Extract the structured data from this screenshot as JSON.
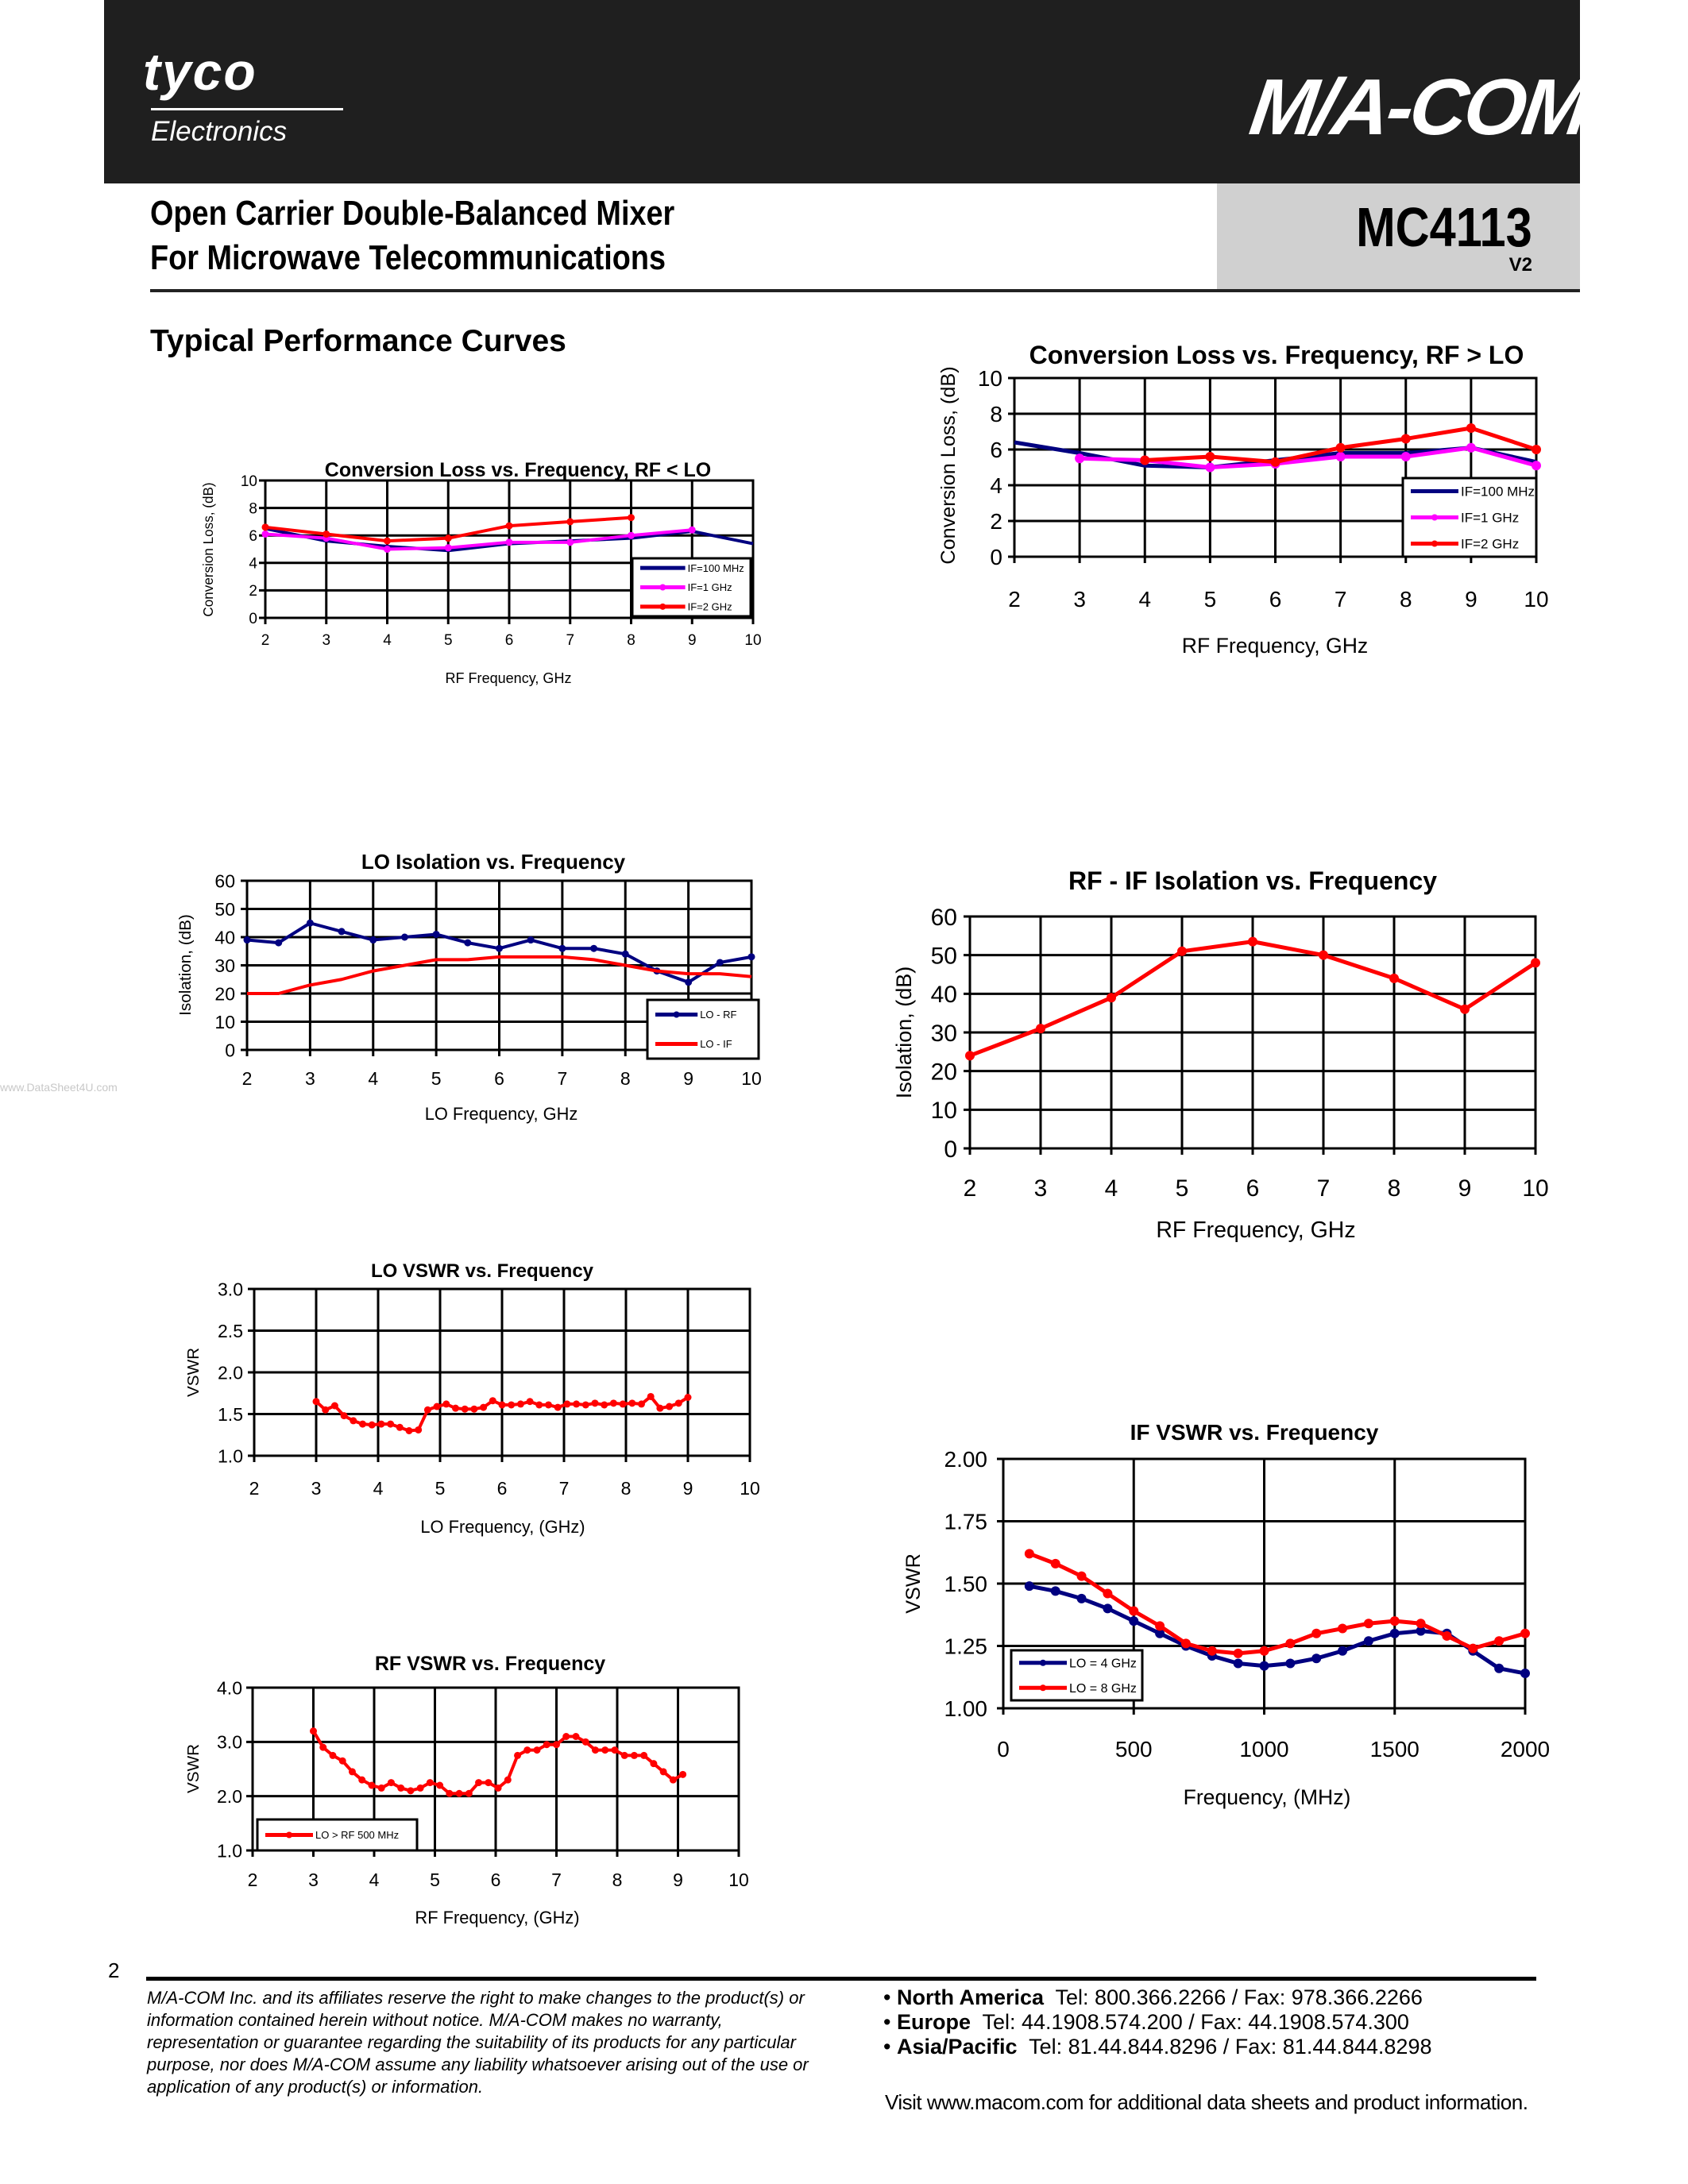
{
  "header": {
    "logo_left": "tyco",
    "logo_left_sub": "Electronics",
    "logo_right": "M/A-COM",
    "title_line1": "Open Carrier Double-Balanced Mixer",
    "title_line2": "For Microwave Telecommunications",
    "part_number": "MC4113",
    "version": "V2"
  },
  "section_title": "Typical Performance Curves",
  "watermark": "www.DataSheet4U.com",
  "footer": {
    "page_number": "2",
    "disclaimer": "M/A-COM Inc. and its affiliates reserve the right to make changes to the product(s) or information contained herein without notice. M/A-COM makes no warranty, representation or guarantee regarding the suitability of its products for any particular purpose, nor does M/A-COM assume any liability whatsoever arising out of the use or application of any product(s) or information.",
    "contacts": [
      {
        "region": "North America",
        "info": "Tel: 800.366.2266 / Fax: 978.366.2266"
      },
      {
        "region": "Europe",
        "info": "Tel: 44.1908.574.200 / Fax: 44.1908.574.300"
      },
      {
        "region": "Asia/Pacific",
        "info": "Tel: 81.44.844.8296 / Fax: 81.44.844.8298"
      }
    ],
    "visit": "Visit www.macom.com for additional data sheets and product information."
  },
  "chart_data": [
    {
      "type": "line",
      "title": "Conversion Loss vs. Frequency,  RF < LO",
      "xlabel": "RF Frequency, GHz",
      "ylabel": "Conversion Loss, (dB)",
      "xlim": [
        2,
        10
      ],
      "ylim": [
        0,
        10
      ],
      "grid": true,
      "legend": "bottom-right",
      "xticks": [
        "2",
        "3",
        "4",
        "5",
        "6",
        "7",
        "8",
        "9",
        "10"
      ],
      "yticks": [
        "0",
        "2",
        "4",
        "6",
        "8",
        "10"
      ],
      "series": [
        {
          "name": "IF=100 MHz",
          "color": "#000080",
          "markers": false,
          "x": [
            2,
            3,
            4,
            5,
            6,
            7,
            8,
            9,
            10
          ],
          "y": [
            6.5,
            5.6,
            5.2,
            4.9,
            5.4,
            5.6,
            5.8,
            6.3,
            5.4
          ]
        },
        {
          "name": "IF=1 GHz",
          "color": "#ff00ff",
          "markers": true,
          "x": [
            2,
            3,
            4,
            5,
            6,
            7,
            8,
            9
          ],
          "y": [
            6.1,
            5.8,
            5.0,
            5.1,
            5.5,
            5.5,
            6.0,
            6.4
          ]
        },
        {
          "name": "IF=2 GHz",
          "color": "#ff0000",
          "markers": true,
          "x": [
            2,
            3,
            4,
            5,
            6,
            7,
            8
          ],
          "y": [
            6.6,
            6.1,
            5.6,
            5.8,
            6.7,
            7.0,
            7.3
          ]
        }
      ]
    },
    {
      "type": "line",
      "title": "Conversion Loss vs. Frequency, RF > LO",
      "xlabel": "RF Frequency, GHz",
      "ylabel": "Conversion Loss, (dB)",
      "xlim": [
        2,
        10
      ],
      "ylim": [
        0,
        10
      ],
      "grid": true,
      "legend": "bottom-right",
      "xticks": [
        "2",
        "3",
        "4",
        "5",
        "6",
        "7",
        "8",
        "9",
        "10"
      ],
      "yticks": [
        "0",
        "2",
        "4",
        "6",
        "8",
        "10"
      ],
      "series": [
        {
          "name": "IF=100 MHz",
          "color": "#000080",
          "markers": false,
          "x": [
            2,
            3,
            4,
            5,
            6,
            7,
            8,
            9,
            10
          ],
          "y": [
            6.4,
            5.8,
            5.1,
            5.0,
            5.4,
            5.8,
            5.8,
            6.1,
            5.3
          ]
        },
        {
          "name": "IF=1 GHz",
          "color": "#ff00ff",
          "markers": true,
          "x": [
            3,
            4,
            5,
            6,
            7,
            8,
            9,
            10
          ],
          "y": [
            5.5,
            5.4,
            5.0,
            5.2,
            5.6,
            5.6,
            6.1,
            5.1
          ]
        },
        {
          "name": "IF=2 GHz",
          "color": "#ff0000",
          "markers": true,
          "x": [
            4,
            5,
            6,
            7,
            8,
            9,
            10
          ],
          "y": [
            5.4,
            5.6,
            5.3,
            6.1,
            6.6,
            7.2,
            6.0
          ]
        }
      ]
    },
    {
      "type": "line",
      "title": "LO Isolation vs. Frequency",
      "xlabel": "LO Frequency, GHz",
      "ylabel": "Isolation, (dB)",
      "xlim": [
        2,
        10
      ],
      "ylim": [
        0,
        60
      ],
      "grid": true,
      "legend": "bottom-right",
      "xticks": [
        "2",
        "3",
        "4",
        "5",
        "6",
        "7",
        "8",
        "9",
        "10"
      ],
      "yticks": [
        "0",
        "10",
        "20",
        "30",
        "40",
        "50",
        "60"
      ],
      "series": [
        {
          "name": "LO - RF",
          "color": "#000080",
          "markers": true,
          "x": [
            2,
            2.5,
            3,
            3.5,
            4,
            4.5,
            5,
            5.5,
            6,
            6.5,
            7,
            7.5,
            8,
            8.5,
            9,
            9.5,
            10
          ],
          "y": [
            39,
            38,
            45,
            42,
            39,
            40,
            41,
            38,
            36,
            39,
            36,
            36,
            34,
            28,
            24,
            31,
            33
          ]
        },
        {
          "name": "LO - IF",
          "color": "#ff0000",
          "markers": false,
          "x": [
            2,
            2.5,
            3,
            3.5,
            4,
            4.5,
            5,
            5.5,
            6,
            6.5,
            7,
            7.5,
            8,
            8.5,
            9,
            9.5,
            10
          ],
          "y": [
            20,
            20,
            23,
            25,
            28,
            30,
            32,
            32,
            33,
            33,
            33,
            32,
            30,
            28,
            27,
            27,
            26
          ]
        }
      ]
    },
    {
      "type": "line",
      "title": "RF - IF Isolation vs. Frequency",
      "xlabel": "RF Frequency, GHz",
      "ylabel": "Isolation, (dB)",
      "xlim": [
        2,
        10
      ],
      "ylim": [
        0,
        60
      ],
      "grid": true,
      "xticks": [
        "2",
        "3",
        "4",
        "5",
        "6",
        "7",
        "8",
        "9",
        "10"
      ],
      "yticks": [
        "0",
        "10",
        "20",
        "30",
        "40",
        "50",
        "60"
      ],
      "series": [
        {
          "color": "#ff0000",
          "markers": true,
          "x": [
            2,
            3,
            4,
            5,
            6,
            7,
            8,
            9,
            10
          ],
          "y": [
            24,
            31,
            39,
            51,
            53.5,
            50,
            44,
            36,
            48
          ]
        }
      ]
    },
    {
      "type": "line",
      "title": "LO VSWR vs. Frequency",
      "xlabel": "LO Frequency, (GHz)",
      "ylabel": "VSWR",
      "xlim": [
        2,
        10
      ],
      "ylim": [
        1.0,
        3.0
      ],
      "grid": true,
      "xticks": [
        "2",
        "3",
        "4",
        "5",
        "6",
        "7",
        "8",
        "9",
        "10"
      ],
      "yticks": [
        "1.0",
        "1.5",
        "2.0",
        "2.5",
        "3.0"
      ],
      "series": [
        {
          "color": "#ff0000",
          "markers": true,
          "x": [
            3.0,
            3.15,
            3.3,
            3.45,
            3.6,
            3.75,
            3.9,
            4.05,
            4.2,
            4.35,
            4.5,
            4.65,
            4.8,
            4.95,
            5.1,
            5.25,
            5.4,
            5.55,
            5.7,
            5.85,
            6.0,
            6.15,
            6.3,
            6.45,
            6.6,
            6.75,
            6.9,
            7.05,
            7.2,
            7.35,
            7.5,
            7.65,
            7.8,
            7.95,
            8.1,
            8.25,
            8.4,
            8.55,
            8.7,
            8.85,
            9.0
          ],
          "y": [
            1.65,
            1.55,
            1.6,
            1.48,
            1.42,
            1.38,
            1.37,
            1.38,
            1.38,
            1.34,
            1.3,
            1.31,
            1.55,
            1.59,
            1.62,
            1.57,
            1.56,
            1.56,
            1.58,
            1.66,
            1.61,
            1.61,
            1.62,
            1.65,
            1.61,
            1.61,
            1.58,
            1.62,
            1.62,
            1.61,
            1.63,
            1.61,
            1.63,
            1.62,
            1.63,
            1.62,
            1.71,
            1.57,
            1.59,
            1.63,
            1.7
          ]
        }
      ]
    },
    {
      "type": "line",
      "title": "RF VSWR vs. Frequency",
      "xlabel": "RF Frequency, (GHz)",
      "ylabel": "VSWR",
      "xlim": [
        2,
        10
      ],
      "ylim": [
        1.0,
        4.0
      ],
      "grid": true,
      "legend": "bottom-left",
      "xticks": [
        "2",
        "3",
        "4",
        "5",
        "6",
        "7",
        "8",
        "9",
        "10"
      ],
      "yticks": [
        "1.0",
        "2.0",
        "3.0",
        "4.0"
      ],
      "series": [
        {
          "name": "LO > RF 500 MHz",
          "color": "#ff0000",
          "markers": true,
          "x": [
            3.0,
            3.16,
            3.32,
            3.48,
            3.64,
            3.8,
            3.96,
            4.12,
            4.28,
            4.44,
            4.6,
            4.76,
            4.92,
            5.08,
            5.24,
            5.4,
            5.56,
            5.72,
            5.88,
            6.04,
            6.2,
            6.36,
            6.52,
            6.68,
            6.84,
            7.0,
            7.16,
            7.32,
            7.48,
            7.64,
            7.8,
            7.96,
            8.12,
            8.28,
            8.44,
            8.6,
            8.76,
            8.92,
            9.08
          ],
          "y": [
            3.2,
            2.9,
            2.75,
            2.65,
            2.45,
            2.3,
            2.2,
            2.15,
            2.25,
            2.15,
            2.1,
            2.15,
            2.25,
            2.2,
            2.05,
            2.05,
            2.05,
            2.25,
            2.25,
            2.15,
            2.3,
            2.75,
            2.85,
            2.85,
            2.95,
            2.95,
            3.1,
            3.1,
            3.0,
            2.85,
            2.85,
            2.85,
            2.75,
            2.75,
            2.75,
            2.6,
            2.45,
            2.3,
            2.4
          ]
        }
      ]
    },
    {
      "type": "line",
      "title": "IF VSWR  vs. Frequency",
      "xlabel": "Frequency, (MHz)",
      "ylabel": "VSWR",
      "xlim": [
        0,
        2000
      ],
      "ylim": [
        1.0,
        2.0
      ],
      "grid": true,
      "legend": "bottom-left",
      "xticks": [
        "0",
        "500",
        "1000",
        "1500",
        "2000"
      ],
      "yticks": [
        "1.00",
        "1.25",
        "1.50",
        "1.75",
        "2.00"
      ],
      "series": [
        {
          "name": "LO = 4 GHz",
          "color": "#000080",
          "markers": true,
          "x": [
            100,
            200,
            300,
            400,
            500,
            600,
            700,
            800,
            900,
            1000,
            1100,
            1200,
            1300,
            1400,
            1500,
            1600,
            1700,
            1800,
            1900,
            2000
          ],
          "y": [
            1.49,
            1.47,
            1.44,
            1.4,
            1.35,
            1.3,
            1.25,
            1.21,
            1.18,
            1.17,
            1.18,
            1.2,
            1.23,
            1.27,
            1.3,
            1.31,
            1.3,
            1.23,
            1.16,
            1.14
          ]
        },
        {
          "name": "LO = 8 GHz",
          "color": "#ff0000",
          "markers": true,
          "x": [
            100,
            200,
            300,
            400,
            500,
            600,
            700,
            800,
            900,
            1000,
            1100,
            1200,
            1300,
            1400,
            1500,
            1600,
            1700,
            1800,
            1900,
            2000
          ],
          "y": [
            1.62,
            1.58,
            1.53,
            1.46,
            1.39,
            1.33,
            1.26,
            1.23,
            1.22,
            1.23,
            1.26,
            1.3,
            1.32,
            1.34,
            1.35,
            1.34,
            1.29,
            1.24,
            1.27,
            1.3
          ]
        }
      ]
    }
  ]
}
